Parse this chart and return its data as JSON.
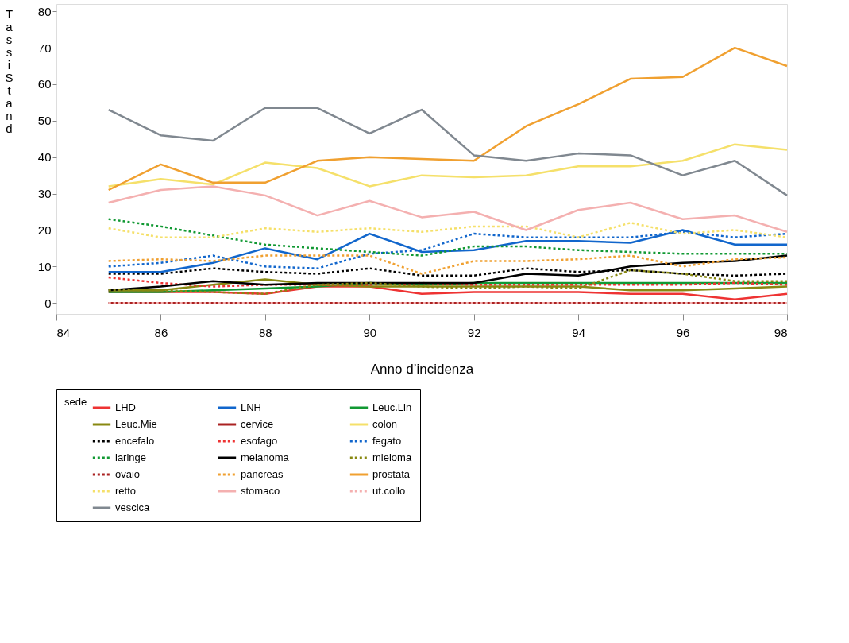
{
  "chart_data": {
    "type": "line",
    "xlabel": "Anno d’incidenza",
    "ylabel": "Tassi Stand",
    "legend_title": "sede",
    "legend": "bottom",
    "grid": false,
    "marker": "none",
    "xlim": [
      84,
      98
    ],
    "xticks": [
      84,
      86,
      88,
      90,
      92,
      94,
      96,
      98
    ],
    "ylim": [
      -3,
      82
    ],
    "yticks": [
      0,
      10,
      20,
      30,
      40,
      50,
      60,
      70,
      80
    ],
    "x": [
      85,
      86,
      87,
      88,
      89,
      90,
      91,
      92,
      93,
      94,
      95,
      96,
      97,
      98
    ],
    "series": [
      {
        "name": "LHD",
        "color": "#ee3333",
        "line_style": "solid",
        "values": [
          3,
          3,
          3,
          2.5,
          4.5,
          4.5,
          2.5,
          3,
          3,
          3,
          2.5,
          2.5,
          1,
          2.5
        ]
      },
      {
        "name": "LNH",
        "color": "#1166cc",
        "line_style": "solid",
        "values": [
          8.5,
          8.5,
          11,
          15,
          12,
          19,
          14,
          14.5,
          17,
          17,
          16.5,
          20,
          16,
          16
        ]
      },
      {
        "name": "Leuc.Lin",
        "color": "#119933",
        "line_style": "solid",
        "values": [
          3,
          3,
          3.5,
          4,
          4.5,
          5.5,
          5,
          5.5,
          5.5,
          5.5,
          5.5,
          5.5,
          5.5,
          5.5
        ]
      },
      {
        "name": "Leuc.Mie",
        "color": "#888811",
        "line_style": "solid",
        "values": [
          3.5,
          3.5,
          5,
          6.5,
          5,
          4.5,
          4.5,
          4.5,
          4.5,
          4.5,
          3.5,
          3.5,
          4,
          4.5
        ]
      },
      {
        "name": "cervice",
        "color": "#aa2222",
        "line_style": "solid",
        "values": [
          0,
          0,
          0,
          0,
          0,
          0,
          0,
          0,
          0,
          0,
          0,
          0,
          0,
          0
        ]
      },
      {
        "name": "colon",
        "color": "#f5e06a",
        "line_style": "solid",
        "values": [
          32,
          34,
          32.5,
          38.5,
          37,
          32,
          35,
          34.5,
          35,
          37.5,
          37.5,
          39,
          43.5,
          42
        ]
      },
      {
        "name": "encefalo",
        "color": "#000000",
        "line_style": "dotted",
        "values": [
          8,
          8,
          9.5,
          8.5,
          8,
          9.5,
          7.5,
          7.5,
          9.5,
          8.5,
          9,
          8,
          7.5,
          8
        ]
      },
      {
        "name": "esofago",
        "color": "#ee3333",
        "line_style": "dotted",
        "values": [
          7,
          5.5,
          4.5,
          5,
          5,
          5,
          5.5,
          5,
          5,
          5,
          5,
          5,
          5.5,
          5
        ]
      },
      {
        "name": "fegato",
        "color": "#1166cc",
        "line_style": "dotted",
        "values": [
          10,
          11,
          13,
          10,
          9.5,
          13.5,
          14.5,
          19,
          18,
          18,
          18,
          19.5,
          18,
          19
        ]
      },
      {
        "name": "laringe",
        "color": "#119933",
        "line_style": "dotted",
        "values": [
          23,
          21,
          18.5,
          16,
          15,
          14,
          13,
          15.5,
          15.5,
          14.5,
          14,
          13.5,
          13.5,
          13.5
        ]
      },
      {
        "name": "melanoma",
        "color": "#000000",
        "line_style": "solid",
        "values": [
          3.5,
          4.5,
          6,
          5,
          5.5,
          5.5,
          5.5,
          5.5,
          8,
          7.5,
          10,
          11,
          11.5,
          13
        ]
      },
      {
        "name": "mieloma",
        "color": "#888811",
        "line_style": "dotted",
        "values": [
          3.5,
          3.5,
          3,
          2.5,
          5,
          5.5,
          4.5,
          4,
          4.5,
          4,
          9,
          8,
          6,
          6
        ]
      },
      {
        "name": "ovaio",
        "color": "#aa2222",
        "line_style": "dotted",
        "values": [
          0,
          0,
          0,
          0,
          0,
          0,
          0,
          0,
          0,
          0,
          0,
          0,
          0,
          0
        ]
      },
      {
        "name": "pancreas",
        "color": "#f0a030",
        "line_style": "dotted",
        "values": [
          11.5,
          12,
          11.5,
          13,
          13,
          13,
          8,
          11.5,
          11.5,
          12,
          13,
          10,
          12,
          12.5
        ]
      },
      {
        "name": "prostata",
        "color": "#f0a030",
        "line_style": "solid",
        "values": [
          31,
          38,
          33,
          33,
          39,
          40,
          39.5,
          39,
          48.5,
          54.5,
          61.5,
          62,
          70,
          65
        ]
      },
      {
        "name": "retto",
        "color": "#f5e06a",
        "line_style": "dotted",
        "values": [
          20.5,
          18,
          18,
          20.5,
          19.5,
          20.5,
          19.5,
          21,
          21,
          18,
          22,
          19,
          20,
          18
        ]
      },
      {
        "name": "stomaco",
        "color": "#f4b0b0",
        "line_style": "solid",
        "values": [
          27.5,
          31,
          32,
          29.5,
          24,
          28,
          23.5,
          25,
          20,
          25.5,
          27.5,
          23,
          24,
          19.5
        ]
      },
      {
        "name": "ut.collo",
        "color": "#f4b0b0",
        "line_style": "dotted",
        "values": [
          0,
          0,
          0,
          0,
          0,
          0,
          0,
          0,
          0,
          0,
          0,
          0,
          0,
          0
        ]
      },
      {
        "name": "vescica",
        "color": "#808890",
        "line_style": "solid",
        "values": [
          53,
          46,
          44.5,
          53.5,
          53.5,
          46.5,
          53,
          40.5,
          39,
          41,
          40.5,
          35,
          39,
          29.5
        ]
      }
    ]
  }
}
